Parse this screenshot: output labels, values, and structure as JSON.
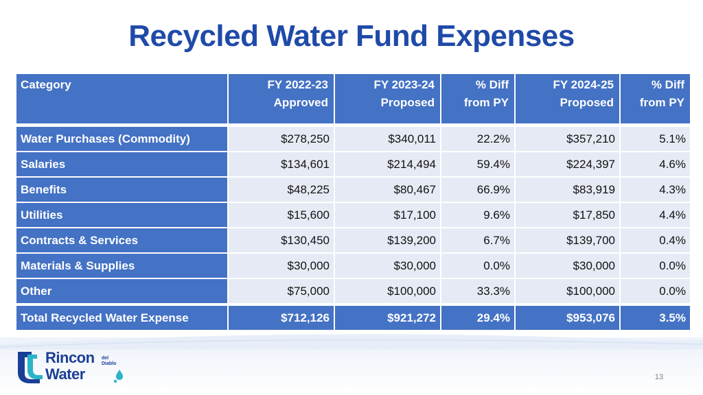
{
  "title": "Recycled Water Fund Expenses",
  "table": {
    "headers": [
      "Category",
      "FY 2022-23\nApproved",
      "FY 2023-24\nProposed",
      "% Diff\nfrom PY",
      "FY 2024-25\nProposed",
      "% Diff\nfrom PY"
    ],
    "rows": [
      [
        "Water Purchases (Commodity)",
        "$278,250",
        "$340,011",
        "22.2%",
        "$357,210",
        "5.1%"
      ],
      [
        "Salaries",
        "$134,601",
        "$214,494",
        "59.4%",
        "$224,397",
        "4.6%"
      ],
      [
        "Benefits",
        "$48,225",
        "$80,467",
        "66.9%",
        "$83,919",
        "4.3%"
      ],
      [
        "Utilities",
        "$15,600",
        "$17,100",
        "9.6%",
        "$17,850",
        "4.4%"
      ],
      [
        "Contracts & Services",
        "$130,450",
        "$139,200",
        "6.7%",
        "$139,700",
        "0.4%"
      ],
      [
        "Materials & Supplies",
        "$30,000",
        "$30,000",
        "0.0%",
        "$30,000",
        "0.0%"
      ],
      [
        "Other",
        "$75,000",
        "$100,000",
        "33.3%",
        "$100,000",
        "0.0%"
      ]
    ],
    "total": [
      "Total Recycled Water Expense",
      "$712,126",
      "$921,272",
      "29.4%",
      "$953,076",
      "3.5%"
    ]
  },
  "logo": {
    "line1": "Rincon",
    "line2": "Water",
    "sub1": "del",
    "sub2": "Diablo"
  },
  "page_number": "13",
  "colors": {
    "title": "#1f4aa8",
    "header_fill": "#4472c4",
    "row_fill": "#e6eaf4",
    "brand": "#1b3f95",
    "brand_teal": "#2bb3c9"
  }
}
